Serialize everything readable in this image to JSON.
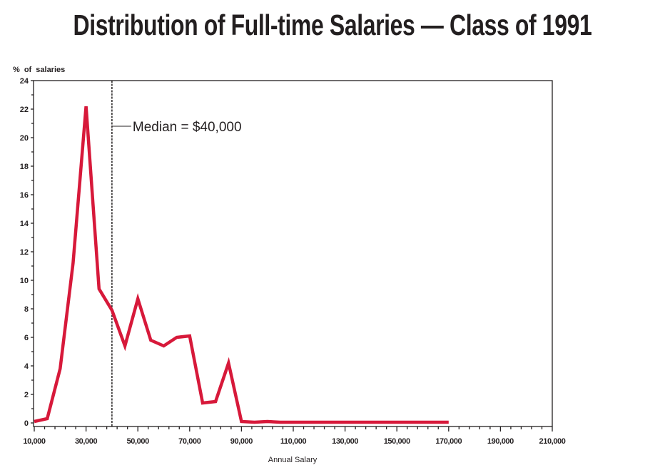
{
  "title": "Distribution of Full-time Salaries — Class of 1991",
  "chart_data": {
    "type": "line",
    "title": "Distribution of Full-time Salaries — Class of 1991",
    "xlabel": "Annual Salary",
    "ylabel": "% of salaries",
    "xlim": [
      10000,
      210000
    ],
    "ylim": [
      0,
      24
    ],
    "x_ticks": [
      "10,000",
      "30,000",
      "50,000",
      "70,000",
      "90,000",
      "110,000",
      "130,000",
      "150,000",
      "170,000",
      "190,000",
      "210,000"
    ],
    "y_ticks": [
      "0",
      "2",
      "4",
      "6",
      "8",
      "10",
      "12",
      "14",
      "16",
      "18",
      "20",
      "22",
      "24"
    ],
    "grid": false,
    "line_color": "#d7193a",
    "x": [
      10000,
      15000,
      20000,
      25000,
      30000,
      35000,
      40000,
      45000,
      50000,
      55000,
      60000,
      65000,
      70000,
      75000,
      80000,
      85000,
      90000,
      95000,
      100000,
      105000,
      110000,
      120000,
      130000,
      140000,
      150000,
      160000,
      170000
    ],
    "y": [
      0.1,
      0.3,
      3.8,
      11.2,
      22.2,
      9.4,
      7.9,
      5.4,
      8.7,
      5.8,
      5.4,
      6.0,
      6.1,
      1.4,
      1.5,
      4.2,
      0.1,
      0.05,
      0.1,
      0.05,
      0.05,
      0.05,
      0.05,
      0.05,
      0.05,
      0.05,
      0.05
    ],
    "annotation": {
      "label": "Median = $40,000",
      "x": 40000
    }
  }
}
